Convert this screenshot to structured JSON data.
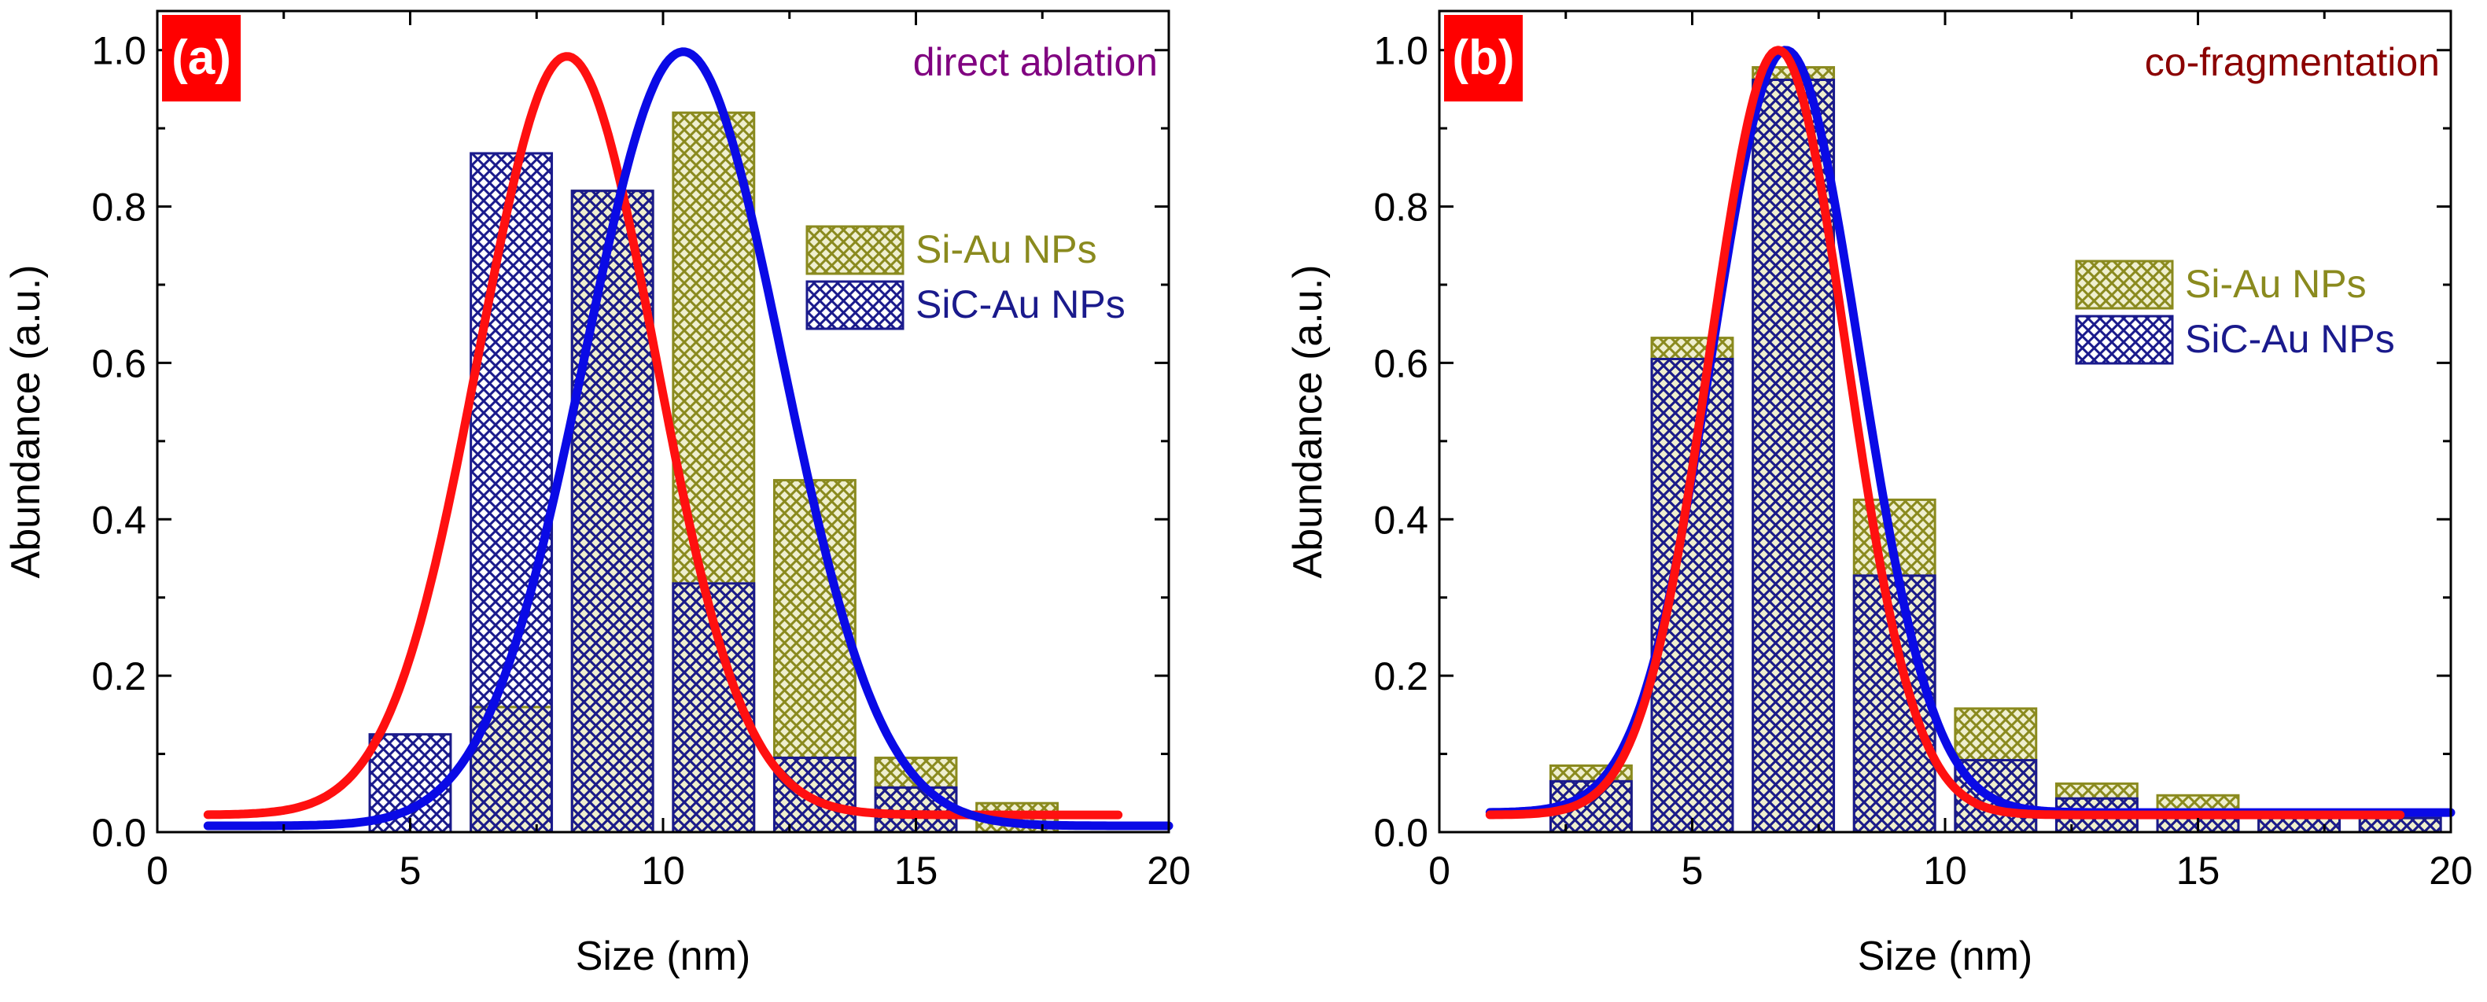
{
  "chart_data": [
    {
      "type": "bar",
      "panel_label": "(a)",
      "annotation": "direct ablation",
      "annotation_color": "#800080",
      "xlabel": "Size (nm)",
      "ylabel": "Abundance (a.u.)",
      "xlim": [
        0,
        20
      ],
      "ylim": [
        0,
        1.05
      ],
      "xticks": [
        "0",
        "5",
        "10",
        "15",
        "20"
      ],
      "yticks": [
        "0.0",
        "0.2",
        "0.4",
        "0.6",
        "0.8",
        "1.0"
      ],
      "legend": [
        "Si-Au NPs",
        "SiC-Au NPs"
      ],
      "legend_position": "center-right",
      "categories": [
        5,
        7,
        9,
        11,
        13,
        15,
        17
      ],
      "bin_width": 1.6,
      "series": [
        {
          "name": "Si-Au NPs",
          "color": "#8a8a1e",
          "values": [
            0.0,
            0.16,
            0.82,
            0.92,
            0.45,
            0.095,
            0.037
          ]
        },
        {
          "name": "SiC-Au NPs",
          "color": "#1a1a8c",
          "values": [
            0.125,
            0.868,
            0.82,
            0.318,
            0.095,
            0.057,
            0.0
          ]
        }
      ],
      "fits": [
        {
          "name": "Si-Au fit",
          "color": "#ff1010",
          "center": 8.1,
          "sigma": 1.75,
          "amplitude": 0.97,
          "offset": 0.022,
          "range": [
            1,
            19
          ]
        },
        {
          "name": "SiC-Au fit",
          "color": "#0a0ae6",
          "center": 10.4,
          "sigma": 1.95,
          "amplitude": 0.99,
          "offset": 0.008,
          "range": [
            1,
            20
          ]
        }
      ]
    },
    {
      "type": "bar",
      "panel_label": "(b)",
      "annotation": "co-fragmentation",
      "annotation_color": "#8b0000",
      "xlabel": "Size (nm)",
      "ylabel": "Abundance (a.u.)",
      "xlim": [
        0,
        20
      ],
      "ylim": [
        0,
        1.05
      ],
      "xticks": [
        "0",
        "5",
        "10",
        "15",
        "20"
      ],
      "yticks": [
        "0.0",
        "0.2",
        "0.4",
        "0.6",
        "0.8",
        "1.0"
      ],
      "legend": [
        "Si-Au NPs",
        "SiC-Au NPs"
      ],
      "legend_position": "center-right",
      "categories": [
        3,
        5,
        7,
        9,
        11,
        13,
        15,
        17,
        19
      ],
      "bin_width": 1.6,
      "series": [
        {
          "name": "Si-Au NPs",
          "color": "#8a8a1e",
          "values": [
            0.085,
            0.632,
            0.978,
            0.425,
            0.158,
            0.062,
            0.047,
            0.025,
            0.02
          ]
        },
        {
          "name": "SiC-Au NPs",
          "color": "#1a1a8c",
          "values": [
            0.065,
            0.605,
            0.962,
            0.328,
            0.092,
            0.043,
            0.027,
            0.022,
            0.018
          ]
        }
      ],
      "fits": [
        {
          "name": "SiC-Au fit",
          "color": "#0a0ae6",
          "center": 6.85,
          "sigma": 1.45,
          "amplitude": 0.975,
          "offset": 0.025,
          "range": [
            1,
            20
          ]
        },
        {
          "name": "Si-Au fit",
          "color": "#ff1010",
          "center": 6.7,
          "sigma": 1.35,
          "amplitude": 0.978,
          "offset": 0.022,
          "range": [
            1,
            19
          ]
        }
      ]
    }
  ]
}
